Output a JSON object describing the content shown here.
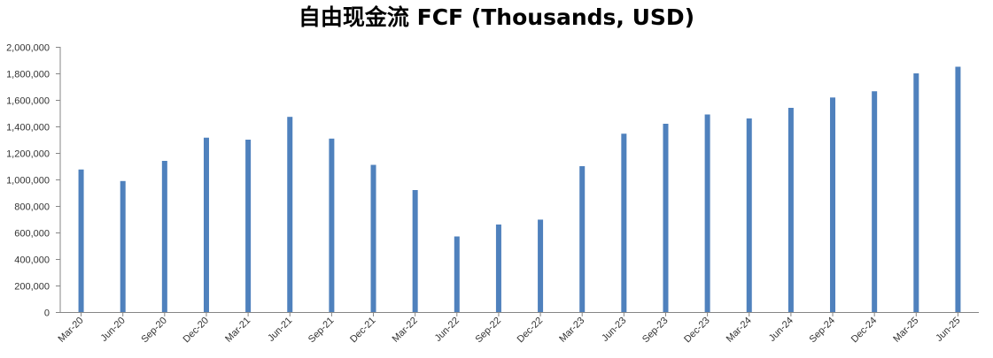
{
  "chart_data": {
    "type": "bar",
    "title": "自由现金流 FCF (Thousands, USD)",
    "xlabel": "",
    "ylabel": "",
    "ylim": [
      0,
      2000000
    ],
    "y_ticks": [
      0,
      200000,
      400000,
      600000,
      800000,
      1000000,
      1200000,
      1400000,
      1600000,
      1800000,
      2000000
    ],
    "y_tick_labels": [
      "0",
      "200,000",
      "400,000",
      "600,000",
      "800,000",
      "1,000,000",
      "1,200,000",
      "1,400,000",
      "1,600,000",
      "1,800,000",
      "2,000,000"
    ],
    "grid": false,
    "legend": "none",
    "bar_color": "#4f81bd",
    "categories": [
      "Mar-20",
      "Jun-20",
      "Sep-20",
      "Dec-20",
      "Mar-21",
      "Jun-21",
      "Sep-21",
      "Dec-21",
      "Mar-22",
      "Jun-22",
      "Sep-22",
      "Dec-22",
      "Mar-23",
      "Jun-23",
      "Sep-23",
      "Dec-23",
      "Mar-24",
      "Jun-24",
      "Sep-24",
      "Dec-24",
      "Mar-25",
      "Jun-25"
    ],
    "values": [
      1075000,
      988000,
      1140000,
      1315000,
      1300000,
      1472000,
      1308000,
      1110000,
      920000,
      570000,
      660000,
      697000,
      1100000,
      1345000,
      1420000,
      1490000,
      1460000,
      1540000,
      1618000,
      1665000,
      1800000,
      1850000
    ]
  }
}
